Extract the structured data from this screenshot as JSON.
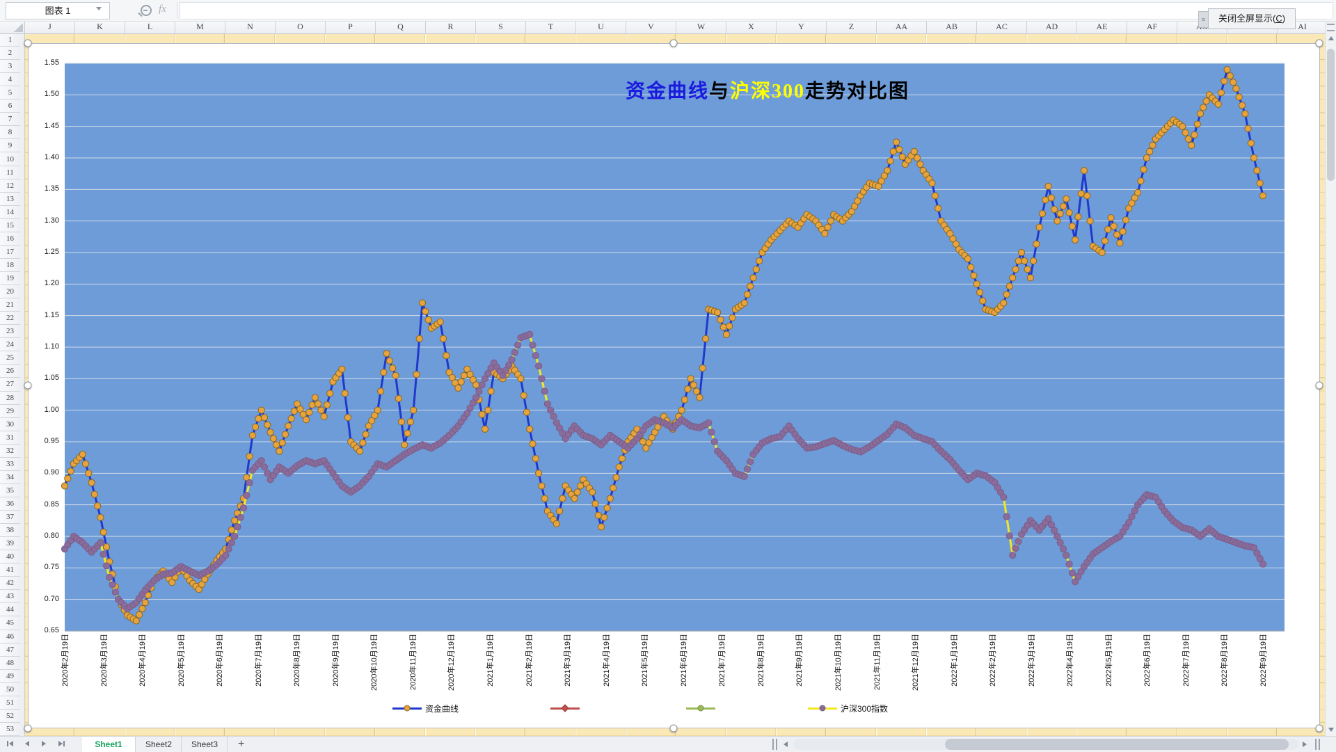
{
  "formula_bar": {
    "name_box_value": "图表 1",
    "fx_label": "fx"
  },
  "fullscreen_button": {
    "pre": "关闭全屏显示(",
    "key": "C",
    "post": ")"
  },
  "grid": {
    "columns": [
      "J",
      "K",
      "L",
      "M",
      "N",
      "O",
      "P",
      "Q",
      "R",
      "S",
      "T",
      "U",
      "V",
      "W",
      "X",
      "Y",
      "Z",
      "AA",
      "AB",
      "AC",
      "AD",
      "AE",
      "AF",
      "AG",
      "AH",
      "AI"
    ],
    "row_start": 1,
    "row_end": 53
  },
  "sheet_tabs": {
    "items": [
      {
        "label": "Sheet1",
        "active": true
      },
      {
        "label": "Sheet2",
        "active": false
      },
      {
        "label": "Sheet3",
        "active": false
      }
    ],
    "add_label": "+"
  },
  "chart_data": {
    "type": "line",
    "title_plain": "资金曲线与沪深300走势对比图",
    "title_parts": [
      {
        "text": "资金曲线",
        "color": "#1A1ADF"
      },
      {
        "text": "与",
        "color": "#000000"
      },
      {
        "text": "沪深300",
        "color": "#FFFF00"
      },
      {
        "text": "走势对比图",
        "color": "#000000"
      }
    ],
    "ylim": [
      0.65,
      1.55
    ],
    "y_ticks": [
      "0.65",
      "0.70",
      "0.75",
      "0.80",
      "0.85",
      "0.90",
      "0.95",
      "1.00",
      "1.05",
      "1.10",
      "1.15",
      "1.20",
      "1.25",
      "1.30",
      "1.35",
      "1.40",
      "1.45",
      "1.50",
      "1.55"
    ],
    "x_tick_labels": [
      "2020年2月19日",
      "2020年3月19日",
      "2020年4月19日",
      "2020年5月19日",
      "2020年6月19日",
      "2020年7月19日",
      "2020年8月19日",
      "2020年9月19日",
      "2020年10月19日",
      "2020年11月19日",
      "2020年12月19日",
      "2021年1月19日",
      "2021年2月19日",
      "2021年3月19日",
      "2021年4月19日",
      "2021年5月19日",
      "2021年6月19日",
      "2021年7月19日",
      "2021年8月19日",
      "2021年9月19日",
      "2021年10月19日",
      "2021年11月19日",
      "2021年12月19日",
      "2022年1月19日",
      "2022年2月19日",
      "2022年3月19日",
      "2022年4月19日",
      "2022年5月19日",
      "2022年6月19日",
      "2022年7月19日",
      "2022年8月19日",
      "2022年9月19日"
    ],
    "x_start": "2020-02-19",
    "x_end": "2022-09-19",
    "plot_bg": "#6E9CD8",
    "gridline_color": "#D3DBE6",
    "legend_position": "bottom",
    "series": [
      {
        "name": "资金曲线",
        "line_color": "#2038CC",
        "marker": "circle",
        "marker_color": "#E6A33E",
        "marker_edge": "#8A671F",
        "values": [
          0.88,
          0.915,
          0.93,
          0.885,
          0.83,
          0.76,
          0.7,
          0.675,
          0.666,
          0.695,
          0.73,
          0.745,
          0.727,
          0.752,
          0.73,
          0.716,
          0.74,
          0.762,
          0.78,
          0.825,
          0.86,
          0.96,
          1.0,
          0.965,
          0.935,
          0.975,
          1.01,
          0.985,
          1.02,
          0.99,
          1.045,
          1.065,
          0.95,
          0.935,
          0.975,
          1.0,
          1.09,
          1.055,
          0.945,
          1.0,
          1.17,
          1.13,
          1.14,
          1.06,
          1.035,
          1.065,
          1.04,
          0.97,
          1.06,
          1.05,
          1.07,
          1.05,
          0.97,
          0.9,
          0.84,
          0.82,
          0.88,
          0.86,
          0.89,
          0.87,
          0.815,
          0.86,
          0.91,
          0.95,
          0.97,
          0.94,
          0.965,
          0.99,
          0.97,
          1.0,
          1.05,
          1.02,
          1.16,
          1.155,
          1.12,
          1.16,
          1.17,
          1.21,
          1.25,
          1.27,
          1.285,
          1.3,
          1.29,
          1.31,
          1.3,
          1.28,
          1.31,
          1.3,
          1.315,
          1.34,
          1.36,
          1.355,
          1.38,
          1.425,
          1.39,
          1.41,
          1.38,
          1.36,
          1.3,
          1.28,
          1.255,
          1.24,
          1.2,
          1.16,
          1.155,
          1.17,
          1.21,
          1.25,
          1.21,
          1.29,
          1.355,
          1.3,
          1.335,
          1.27,
          1.38,
          1.26,
          1.25,
          1.305,
          1.265,
          1.32,
          1.345,
          1.4,
          1.43,
          1.445,
          1.46,
          1.45,
          1.42,
          1.47,
          1.5,
          1.485,
          1.54,
          1.51,
          1.47,
          1.4,
          1.34
        ]
      },
      {
        "name": "",
        "line_color": "#C0504D",
        "marker": "diamond",
        "marker_color": "#C0504D",
        "marker_edge": "#8E3A38",
        "values": []
      },
      {
        "name": "",
        "line_color": "#9BBB59",
        "marker": "circle",
        "marker_color": "#9BBB59",
        "marker_edge": "#71893F",
        "values": []
      },
      {
        "name": "沪深300指数",
        "line_color": "#F2E723",
        "marker": "circle",
        "marker_color": "#8A6C9B",
        "marker_edge": "#7A5C8B",
        "values": [
          0.78,
          0.8,
          0.79,
          0.775,
          0.79,
          0.735,
          0.7,
          0.685,
          0.695,
          0.715,
          0.73,
          0.74,
          0.742,
          0.752,
          0.745,
          0.738,
          0.745,
          0.755,
          0.77,
          0.8,
          0.845,
          0.905,
          0.92,
          0.89,
          0.91,
          0.9,
          0.912,
          0.92,
          0.915,
          0.92,
          0.9,
          0.88,
          0.87,
          0.88,
          0.895,
          0.915,
          0.91,
          0.92,
          0.93,
          0.938,
          0.945,
          0.94,
          0.948,
          0.96,
          0.975,
          0.995,
          1.02,
          1.05,
          1.075,
          1.055,
          1.08,
          1.115,
          1.12,
          1.07,
          1.01,
          0.98,
          0.955,
          0.975,
          0.96,
          0.955,
          0.945,
          0.96,
          0.95,
          0.94,
          0.955,
          0.975,
          0.985,
          0.98,
          0.972,
          0.985,
          0.975,
          0.972,
          0.98,
          0.935,
          0.92,
          0.9,
          0.895,
          0.93,
          0.948,
          0.955,
          0.958,
          0.975,
          0.955,
          0.94,
          0.942,
          0.947,
          0.952,
          0.944,
          0.938,
          0.934,
          0.942,
          0.952,
          0.962,
          0.978,
          0.972,
          0.96,
          0.955,
          0.95,
          0.935,
          0.922,
          0.905,
          0.89,
          0.9,
          0.896,
          0.885,
          0.862,
          0.77,
          0.803,
          0.825,
          0.81,
          0.828,
          0.8,
          0.77,
          0.728,
          0.752,
          0.772,
          0.782,
          0.792,
          0.8,
          0.822,
          0.85,
          0.866,
          0.862,
          0.84,
          0.824,
          0.814,
          0.81,
          0.8,
          0.812,
          0.8,
          0.795,
          0.79,
          0.785,
          0.782,
          0.756
        ]
      }
    ]
  }
}
